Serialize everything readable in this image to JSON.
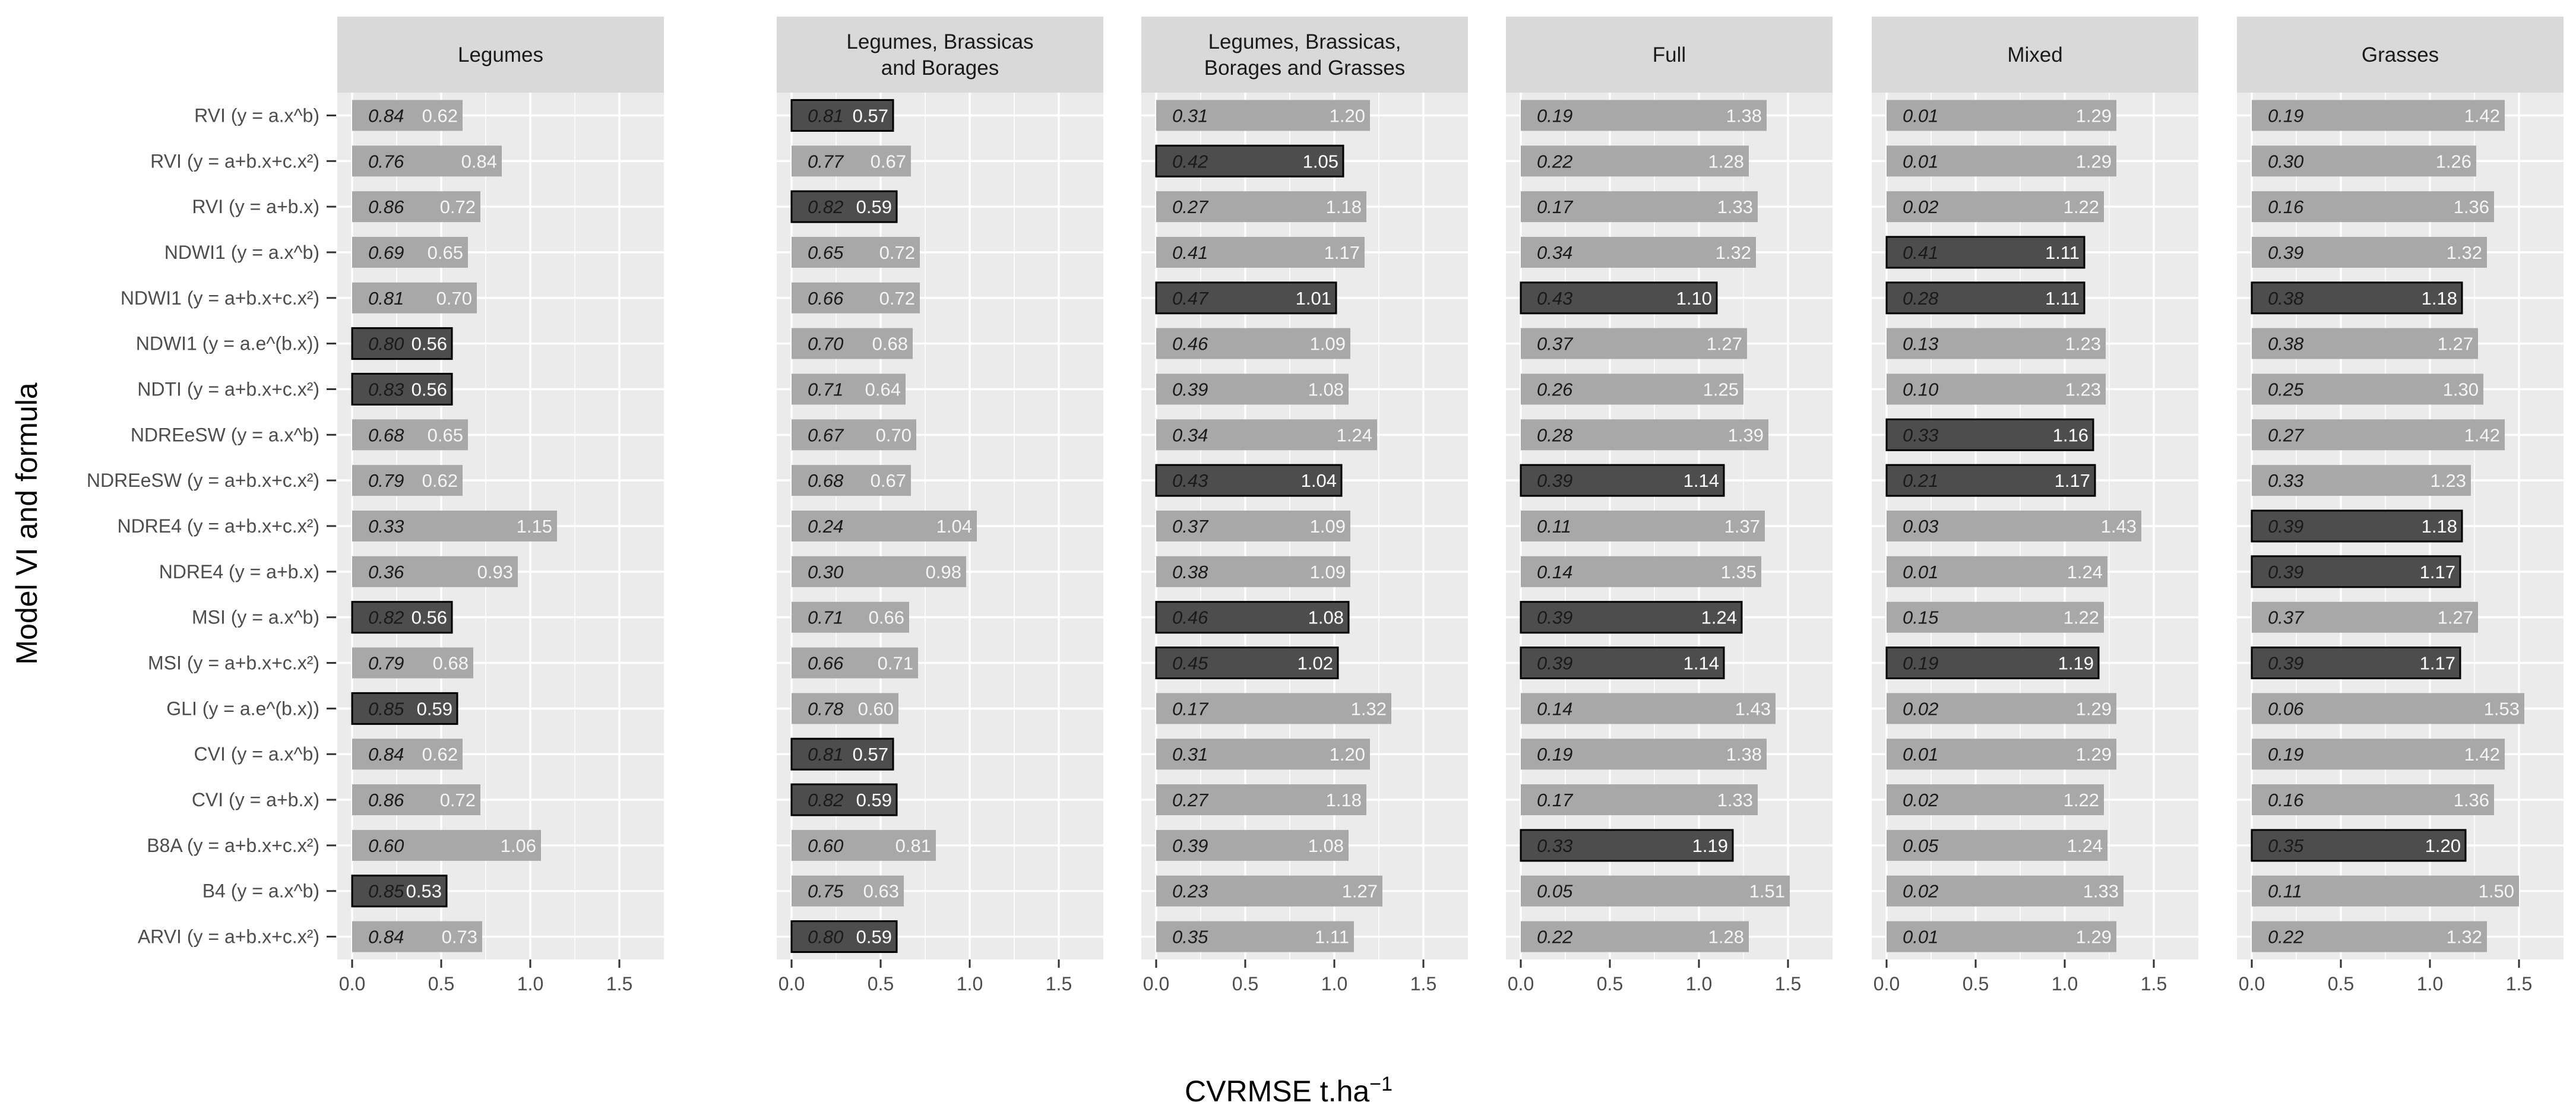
{
  "chart_data": {
    "type": "bar",
    "orientation": "horizontal",
    "xlabel": "CVRMSE t.ha",
    "xlabel_superscript": "−1",
    "ylabel": "Model VI and formula",
    "xlim": [
      0,
      1.75
    ],
    "xticks": [
      "0.0",
      "0.5",
      "1.0",
      "1.5"
    ],
    "xtick_values": [
      0,
      0.5,
      1.0,
      1.5
    ],
    "categories": [
      "RVI (y = a.x^b)",
      "RVI (y = a+b.x+c.x²)",
      "RVI (y = a+b.x)",
      "NDWI1 (y = a.x^b)",
      "NDWI1 (y = a+b.x+c.x²)",
      "NDWI1 (y = a.e^(b.x))",
      "NDTI (y = a+b.x+c.x²)",
      "NDREeSW (y = a.x^b)",
      "NDREeSW (y = a+b.x+c.x²)",
      "NDRE4 (y = a+b.x+c.x²)",
      "NDRE4 (y = a+b.x)",
      "MSI (y = a.x^b)",
      "MSI (y = a+b.x+c.x²)",
      "GLI (y = a.e^(b.x))",
      "CVI (y = a.x^b)",
      "CVI (y = a+b.x)",
      "B8A (y = a+b.x+c.x²)",
      "B4 (y = a.x^b)",
      "ARVI (y = a+b.x+c.x²)"
    ],
    "panels": [
      {
        "title": [
          "Legumes"
        ],
        "values": [
          0.62,
          0.84,
          0.72,
          0.65,
          0.7,
          0.56,
          0.56,
          0.65,
          0.62,
          1.15,
          0.93,
          0.56,
          0.68,
          0.59,
          0.62,
          0.72,
          1.06,
          0.53,
          0.73
        ],
        "r2": [
          "0.84",
          "0.76",
          "0.86",
          "0.69",
          "0.81",
          "0.80",
          "0.83",
          "0.68",
          "0.79",
          "0.33",
          "0.36",
          "0.82",
          "0.79",
          "0.85",
          "0.84",
          "0.86",
          "0.60",
          "0.85",
          "0.84"
        ],
        "highlight": [
          false,
          false,
          false,
          false,
          false,
          true,
          true,
          false,
          false,
          false,
          false,
          true,
          false,
          true,
          false,
          false,
          false,
          true,
          false
        ]
      },
      {
        "title": [
          "Legumes, Brassicas",
          "and Borages"
        ],
        "values": [
          0.57,
          0.67,
          0.59,
          0.72,
          0.72,
          0.68,
          0.64,
          0.7,
          0.67,
          1.04,
          0.98,
          0.66,
          0.71,
          0.6,
          0.57,
          0.59,
          0.81,
          0.63,
          0.59
        ],
        "r2": [
          "0.81",
          "0.77",
          "0.82",
          "0.65",
          "0.66",
          "0.70",
          "0.71",
          "0.67",
          "0.68",
          "0.24",
          "0.30",
          "0.71",
          "0.66",
          "0.78",
          "0.81",
          "0.82",
          "0.60",
          "0.75",
          "0.80"
        ],
        "highlight": [
          true,
          false,
          true,
          false,
          false,
          false,
          false,
          false,
          false,
          false,
          false,
          false,
          false,
          false,
          true,
          true,
          false,
          false,
          true
        ]
      },
      {
        "title": [
          "Legumes, Brassicas,",
          "Borages and Grasses"
        ],
        "values": [
          1.2,
          1.05,
          1.18,
          1.17,
          1.01,
          1.09,
          1.08,
          1.24,
          1.04,
          1.09,
          1.09,
          1.08,
          1.02,
          1.32,
          1.2,
          1.18,
          1.08,
          1.27,
          1.11
        ],
        "r2": [
          "0.31",
          "0.42",
          "0.27",
          "0.41",
          "0.47",
          "0.46",
          "0.39",
          "0.34",
          "0.43",
          "0.37",
          "0.38",
          "0.46",
          "0.45",
          "0.17",
          "0.31",
          "0.27",
          "0.39",
          "0.23",
          "0.35"
        ],
        "highlight": [
          false,
          true,
          false,
          false,
          true,
          false,
          false,
          false,
          true,
          false,
          false,
          true,
          true,
          false,
          false,
          false,
          false,
          false,
          false
        ]
      },
      {
        "title": [
          "Full"
        ],
        "values": [
          1.38,
          1.28,
          1.33,
          1.32,
          1.1,
          1.27,
          1.25,
          1.39,
          1.14,
          1.37,
          1.35,
          1.24,
          1.14,
          1.43,
          1.38,
          1.33,
          1.19,
          1.51,
          1.28
        ],
        "r2": [
          "0.19",
          "0.22",
          "0.17",
          "0.34",
          "0.43",
          "0.37",
          "0.26",
          "0.28",
          "0.39",
          "0.11",
          "0.14",
          "0.39",
          "0.39",
          "0.14",
          "0.19",
          "0.17",
          "0.33",
          "0.05",
          "0.22"
        ],
        "highlight": [
          false,
          false,
          false,
          false,
          true,
          false,
          false,
          false,
          true,
          false,
          false,
          true,
          true,
          false,
          false,
          false,
          true,
          false,
          false
        ]
      },
      {
        "title": [
          "Mixed"
        ],
        "values": [
          1.29,
          1.29,
          1.22,
          1.11,
          1.11,
          1.23,
          1.23,
          1.16,
          1.17,
          1.43,
          1.24,
          1.22,
          1.19,
          1.29,
          1.29,
          1.22,
          1.24,
          1.33,
          1.29
        ],
        "r2": [
          "0.01",
          "0.01",
          "0.02",
          "0.41",
          "0.28",
          "0.13",
          "0.10",
          "0.33",
          "0.21",
          "0.03",
          "0.01",
          "0.15",
          "0.19",
          "0.02",
          "0.01",
          "0.02",
          "0.05",
          "0.02",
          "0.01"
        ],
        "highlight": [
          false,
          false,
          false,
          true,
          true,
          false,
          false,
          true,
          true,
          false,
          false,
          false,
          true,
          false,
          false,
          false,
          false,
          false,
          false
        ]
      },
      {
        "title": [
          "Grasses"
        ],
        "values": [
          1.42,
          1.26,
          1.36,
          1.32,
          1.18,
          1.27,
          1.3,
          1.42,
          1.23,
          1.18,
          1.17,
          1.27,
          1.17,
          1.53,
          1.42,
          1.36,
          1.2,
          1.5,
          1.32
        ],
        "r2": [
          "0.19",
          "0.30",
          "0.16",
          "0.39",
          "0.38",
          "0.38",
          "0.25",
          "0.27",
          "0.33",
          "0.39",
          "0.39",
          "0.37",
          "0.39",
          "0.06",
          "0.19",
          "0.16",
          "0.35",
          "0.11",
          "0.22"
        ],
        "highlight": [
          false,
          false,
          false,
          false,
          true,
          false,
          false,
          false,
          false,
          true,
          true,
          false,
          true,
          false,
          false,
          false,
          true,
          false,
          false
        ]
      }
    ],
    "colors": {
      "panel_bg": "#ebebeb",
      "strip_bg": "#d9d9d9",
      "grid": "#ffffff",
      "bar": "#a8a8a8",
      "bar_highlight": "#4d4d4d",
      "bar_border": "#000000"
    }
  }
}
